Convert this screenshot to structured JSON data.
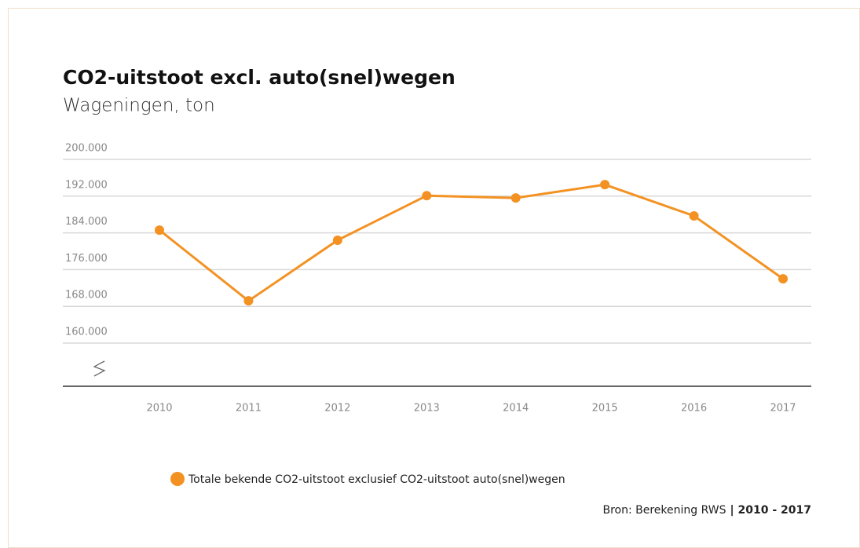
{
  "chart_data": {
    "type": "line",
    "title": "CO2-uitstoot  excl. auto(snel)wegen",
    "subtitle": "Wageningen, ton",
    "categories": [
      "2010",
      "2011",
      "2012",
      "2013",
      "2014",
      "2015",
      "2016",
      "2017"
    ],
    "series": [
      {
        "name": "Totale bekende CO2-uitstoot exclusief CO2-uitstoot auto(snel)wegen",
        "color": "#f39223",
        "values": [
          184600,
          169200,
          182400,
          192100,
          191600,
          194500,
          187700,
          174000
        ]
      }
    ],
    "ylim": [
      160000,
      200000
    ],
    "yticks": [
      {
        "value": 160000,
        "label": "160.000"
      },
      {
        "value": 168000,
        "label": "168.000"
      },
      {
        "value": 176000,
        "label": "176.000"
      },
      {
        "value": 184000,
        "label": "184.000"
      },
      {
        "value": 192000,
        "label": "192.000"
      },
      {
        "value": 200000,
        "label": "200.000"
      }
    ],
    "grid": true,
    "legend": "bottom",
    "source": "Bron: Berekening RWS",
    "source_period": "| 2010 - 2017"
  }
}
